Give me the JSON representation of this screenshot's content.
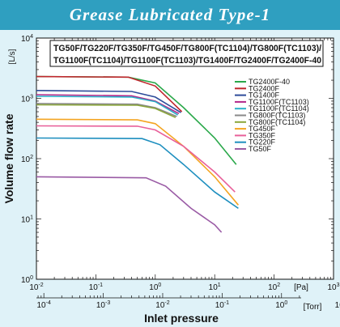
{
  "header": {
    "title": "Grease Lubricated Type-1"
  },
  "models_box": {
    "line1": "TG50F/TG220F/TG350F/TG450F/TG800F(TC1104)/TG800F(TC1103)/",
    "line2": "TG1100F(TC1104)/TG1100F(TC1103)/TG1400F/TG2400F/TG2400F-40"
  },
  "colors": {
    "banner": "#2f9fc0",
    "plot_bg": "#ffffff",
    "page_bg": "#dff2f8"
  },
  "chart_data": {
    "type": "line",
    "x_scale": "log",
    "y_scale": "log",
    "xlim": [
      0.01,
      1000
    ],
    "ylim": [
      1,
      10000
    ],
    "xlabel": "Inlet pressure",
    "ylabel": "Volume flow rate",
    "y_unit": "[L/s]",
    "x_unit_primary": "[Pa]",
    "x_unit_secondary": "[Torr]",
    "x_ticks": [
      "10^-2",
      "10^-1",
      "10^0",
      "10^1",
      "10^2",
      "10^3"
    ],
    "x_ticks_secondary": [
      "10^-4",
      "10^-3",
      "10^-2",
      "10^-1",
      "10^0",
      "10^1"
    ],
    "y_ticks": [
      "10^0",
      "10^1",
      "10^2",
      "10^3",
      "10^4"
    ],
    "series": [
      {
        "name": "TG2400F-40",
        "color": "#2aa84a",
        "points": [
          [
            0.01,
            2300
          ],
          [
            0.35,
            2250
          ],
          [
            1.0,
            1800
          ],
          [
            3.0,
            700
          ],
          [
            10,
            220
          ],
          [
            23,
            80
          ]
        ]
      },
      {
        "name": "TG2400F",
        "color": "#c0272d",
        "points": [
          [
            0.01,
            2300
          ],
          [
            0.35,
            2250
          ],
          [
            1.0,
            1600
          ],
          [
            2.8,
            600
          ]
        ]
      },
      {
        "name": "TG1400F",
        "color": "#2d4b9a",
        "points": [
          [
            0.01,
            1350
          ],
          [
            0.4,
            1300
          ],
          [
            1.0,
            1050
          ],
          [
            2.7,
            580
          ]
        ]
      },
      {
        "name": "TG1100F(TC1103)",
        "color": "#b2278a",
        "points": [
          [
            0.01,
            1150
          ],
          [
            0.4,
            1100
          ],
          [
            1.0,
            900
          ],
          [
            2.5,
            560
          ]
        ]
      },
      {
        "name": "TG1100F(TC1104)",
        "color": "#2bb0c9",
        "points": [
          [
            0.01,
            1080
          ],
          [
            0.4,
            1050
          ],
          [
            1.0,
            880
          ],
          [
            2.4,
            530
          ]
        ]
      },
      {
        "name": "TG800F(TC1103)",
        "color": "#8a8a8a",
        "points": [
          [
            0.01,
            820
          ],
          [
            0.5,
            800
          ],
          [
            1.0,
            700
          ],
          [
            2.3,
            500
          ]
        ]
      },
      {
        "name": "TG800F(TC1104)",
        "color": "#8aa63a",
        "points": [
          [
            0.01,
            780
          ],
          [
            0.5,
            770
          ],
          [
            1.0,
            680
          ],
          [
            2.2,
            480
          ]
        ]
      },
      {
        "name": "TG450F",
        "color": "#f4a522",
        "points": [
          [
            0.01,
            450
          ],
          [
            0.5,
            440
          ],
          [
            1.0,
            380
          ],
          [
            3.0,
            160
          ],
          [
            10,
            50
          ],
          [
            25,
            17
          ]
        ]
      },
      {
        "name": "TG350F",
        "color": "#e8609a",
        "points": [
          [
            0.01,
            350
          ],
          [
            0.5,
            345
          ],
          [
            1.0,
            300
          ],
          [
            3.0,
            160
          ],
          [
            10,
            60
          ],
          [
            22,
            28
          ]
        ]
      },
      {
        "name": "TG220F",
        "color": "#1e8fbf",
        "points": [
          [
            0.01,
            220
          ],
          [
            0.6,
            215
          ],
          [
            1.2,
            170
          ],
          [
            3.0,
            80
          ],
          [
            10,
            28
          ],
          [
            25,
            15
          ]
        ]
      },
      {
        "name": "TG50F",
        "color": "#9a5ba5",
        "points": [
          [
            0.01,
            50
          ],
          [
            0.7,
            48
          ],
          [
            1.5,
            35
          ],
          [
            4.0,
            15
          ],
          [
            10,
            8
          ],
          [
            13,
            6
          ]
        ]
      }
    ],
    "legend_placement": "top-right",
    "grid": false
  }
}
